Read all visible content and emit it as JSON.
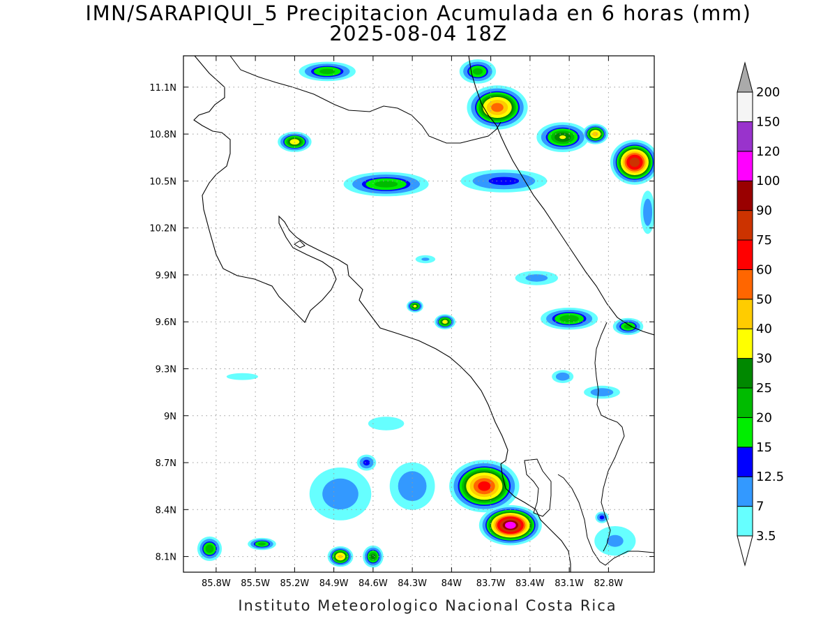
{
  "title": {
    "line1": "IMN/SARAPIQUI_5 Precipitacion Acumulada en 6 horas (mm)",
    "line2": "2025-08-04 18Z"
  },
  "footer": "Instituto Meteorologico Nacional Costa Rica",
  "map": {
    "lon_range": [
      -86.05,
      -82.45
    ],
    "lat_range": [
      8.0,
      11.3
    ],
    "lon_ticks": [
      {
        "value": -85.8,
        "label": "85.8W"
      },
      {
        "value": -85.5,
        "label": "85.5W"
      },
      {
        "value": -85.2,
        "label": "85.2W"
      },
      {
        "value": -84.9,
        "label": "84.9W"
      },
      {
        "value": -84.6,
        "label": "84.6W"
      },
      {
        "value": -84.3,
        "label": "84.3W"
      },
      {
        "value": -84.0,
        "label": "84W"
      },
      {
        "value": -83.7,
        "label": "83.7W"
      },
      {
        "value": -83.4,
        "label": "83.4W"
      },
      {
        "value": -83.1,
        "label": "83.1W"
      },
      {
        "value": -82.8,
        "label": "82.8W"
      }
    ],
    "lat_ticks": [
      {
        "value": 8.1,
        "label": "8.1N"
      },
      {
        "value": 8.4,
        "label": "8.4N"
      },
      {
        "value": 8.7,
        "label": "8.7N"
      },
      {
        "value": 9.0,
        "label": "9N"
      },
      {
        "value": 9.3,
        "label": "9.3N"
      },
      {
        "value": 9.6,
        "label": "9.6N"
      },
      {
        "value": 9.9,
        "label": "9.9N"
      },
      {
        "value": 10.2,
        "label": "10.2N"
      },
      {
        "value": 10.5,
        "label": "10.5N"
      },
      {
        "value": 10.8,
        "label": "10.8N"
      },
      {
        "value": 11.1,
        "label": "11.1N"
      }
    ],
    "grid": true
  },
  "colorbar": {
    "levels": [
      "3.5",
      "7",
      "12.5",
      "15",
      "20",
      "25",
      "30",
      "40",
      "50",
      "60",
      "75",
      "90",
      "100",
      "120",
      "150",
      "200"
    ],
    "colors": [
      "#66ffff",
      "#3399ff",
      "#0000ff",
      "#00ee00",
      "#00bb00",
      "#008800",
      "#ffff00",
      "#ffcc00",
      "#ff6600",
      "#ff0000",
      "#cc3300",
      "#990000",
      "#ff00ff",
      "#9933cc",
      "#f5f5f5"
    ],
    "under_color": "#ffffff",
    "over_color": "#aaaaaa"
  },
  "precip_cells": [
    {
      "lon": -83.65,
      "lat": 10.97,
      "rx": 0.28,
      "ry": 0.17,
      "max": 55
    },
    {
      "lon": -83.8,
      "lat": 11.2,
      "rx": 0.18,
      "ry": 0.1,
      "max": 22
    },
    {
      "lon": -83.15,
      "lat": 10.78,
      "rx": 0.25,
      "ry": 0.12,
      "max": 30
    },
    {
      "lon": -82.6,
      "lat": 10.62,
      "rx": 0.22,
      "ry": 0.17,
      "max": 85
    },
    {
      "lon": -82.9,
      "lat": 10.8,
      "rx": 0.12,
      "ry": 0.08,
      "max": 45
    },
    {
      "lon": -82.5,
      "lat": 10.3,
      "rx": 0.08,
      "ry": 0.2,
      "max": 10
    },
    {
      "lon": -84.95,
      "lat": 11.2,
      "rx": 0.28,
      "ry": 0.08,
      "max": 22
    },
    {
      "lon": -85.2,
      "lat": 10.75,
      "rx": 0.16,
      "ry": 0.08,
      "max": 35
    },
    {
      "lon": -84.5,
      "lat": 10.48,
      "rx": 0.42,
      "ry": 0.1,
      "max": 22
    },
    {
      "lon": -83.6,
      "lat": 10.5,
      "rx": 0.45,
      "ry": 0.1,
      "max": 14
    },
    {
      "lon": -84.28,
      "lat": 9.7,
      "rx": 0.08,
      "ry": 0.05,
      "max": 32
    },
    {
      "lon": -84.05,
      "lat": 9.6,
      "rx": 0.1,
      "ry": 0.06,
      "max": 34
    },
    {
      "lon": -83.1,
      "lat": 9.62,
      "rx": 0.28,
      "ry": 0.09,
      "max": 24
    },
    {
      "lon": -82.65,
      "lat": 9.57,
      "rx": 0.15,
      "ry": 0.07,
      "max": 22
    },
    {
      "lon": -83.35,
      "lat": 9.88,
      "rx": 0.25,
      "ry": 0.07,
      "max": 8
    },
    {
      "lon": -83.75,
      "lat": 8.55,
      "rx": 0.32,
      "ry": 0.2,
      "max": 65
    },
    {
      "lon": -83.55,
      "lat": 8.3,
      "rx": 0.28,
      "ry": 0.15,
      "max": 110
    },
    {
      "lon": -84.3,
      "lat": 8.55,
      "rx": 0.25,
      "ry": 0.22,
      "max": 10
    },
    {
      "lon": -84.85,
      "lat": 8.5,
      "rx": 0.35,
      "ry": 0.25,
      "max": 9
    },
    {
      "lon": -84.85,
      "lat": 8.1,
      "rx": 0.12,
      "ry": 0.08,
      "max": 42
    },
    {
      "lon": -84.6,
      "lat": 8.1,
      "rx": 0.1,
      "ry": 0.09,
      "max": 27
    },
    {
      "lon": -85.85,
      "lat": 8.15,
      "rx": 0.12,
      "ry": 0.1,
      "max": 24
    },
    {
      "lon": -85.45,
      "lat": 8.18,
      "rx": 0.14,
      "ry": 0.05,
      "max": 22
    },
    {
      "lon": -84.65,
      "lat": 8.7,
      "rx": 0.1,
      "ry": 0.07,
      "max": 14
    },
    {
      "lon": -82.85,
      "lat": 8.35,
      "rx": 0.07,
      "ry": 0.05,
      "max": 14
    },
    {
      "lon": -82.75,
      "lat": 8.2,
      "rx": 0.25,
      "ry": 0.15,
      "max": 7
    },
    {
      "lon": -85.6,
      "lat": 9.25,
      "rx": 0.22,
      "ry": 0.04,
      "max": 5
    },
    {
      "lon": -84.2,
      "lat": 10.0,
      "rx": 0.12,
      "ry": 0.04,
      "max": 7
    },
    {
      "lon": -82.85,
      "lat": 9.15,
      "rx": 0.2,
      "ry": 0.06,
      "max": 10
    },
    {
      "lon": -83.15,
      "lat": 9.25,
      "rx": 0.12,
      "ry": 0.06,
      "max": 10
    },
    {
      "lon": -84.5,
      "lat": 8.95,
      "rx": 0.25,
      "ry": 0.08,
      "max": 5
    }
  ]
}
